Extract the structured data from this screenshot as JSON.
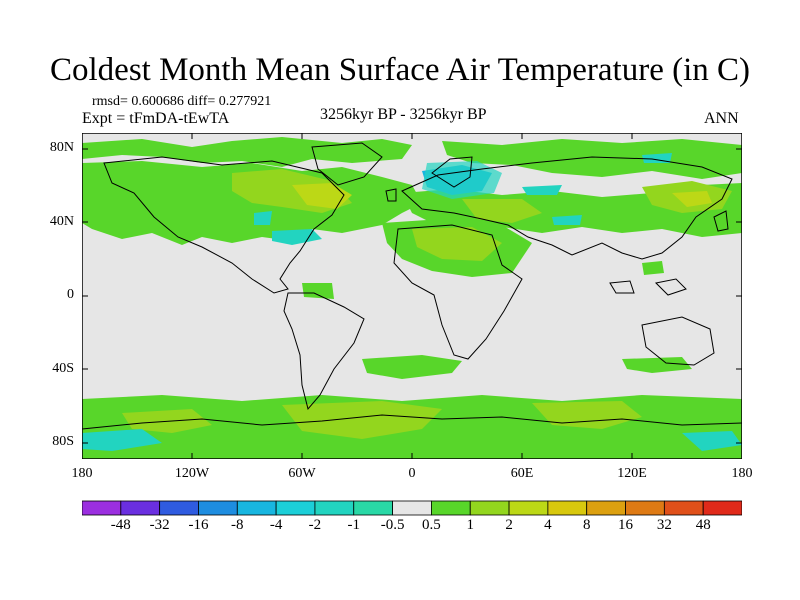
{
  "header": {
    "title": "Coldest Month Mean Surface Air Temperature (in C)",
    "stats": "rmsd= 0.600686 diff= 0.277921",
    "experiment": "Expt = tFmDA-tEwTA",
    "period": "3256kyr BP - 3256kyr BP",
    "season": "ANN"
  },
  "map": {
    "lat_labels": [
      "80N",
      "40N",
      "0",
      "40S",
      "80S"
    ],
    "lon_labels": [
      "180",
      "120W",
      "60W",
      "0",
      "60E",
      "120E",
      "180"
    ],
    "background_color": "#e6e6e6"
  },
  "colorbar": {
    "labels": [
      "-48",
      "-32",
      "-16",
      "-8",
      "-4",
      "-2",
      "-1",
      "-0.5",
      "0.5",
      "1",
      "2",
      "4",
      "8",
      "16",
      "32",
      "48"
    ],
    "colors": [
      "#9b2fe0",
      "#6a2fe0",
      "#2f5be0",
      "#1e8de0",
      "#18b6e0",
      "#1ccfd8",
      "#22d4c0",
      "#29d8a6",
      "#e6e6e6",
      "#58d62a",
      "#93d61e",
      "#bcd816",
      "#d8c80e",
      "#dca010",
      "#de7a14",
      "#e0501a",
      "#e02a1a"
    ]
  }
}
